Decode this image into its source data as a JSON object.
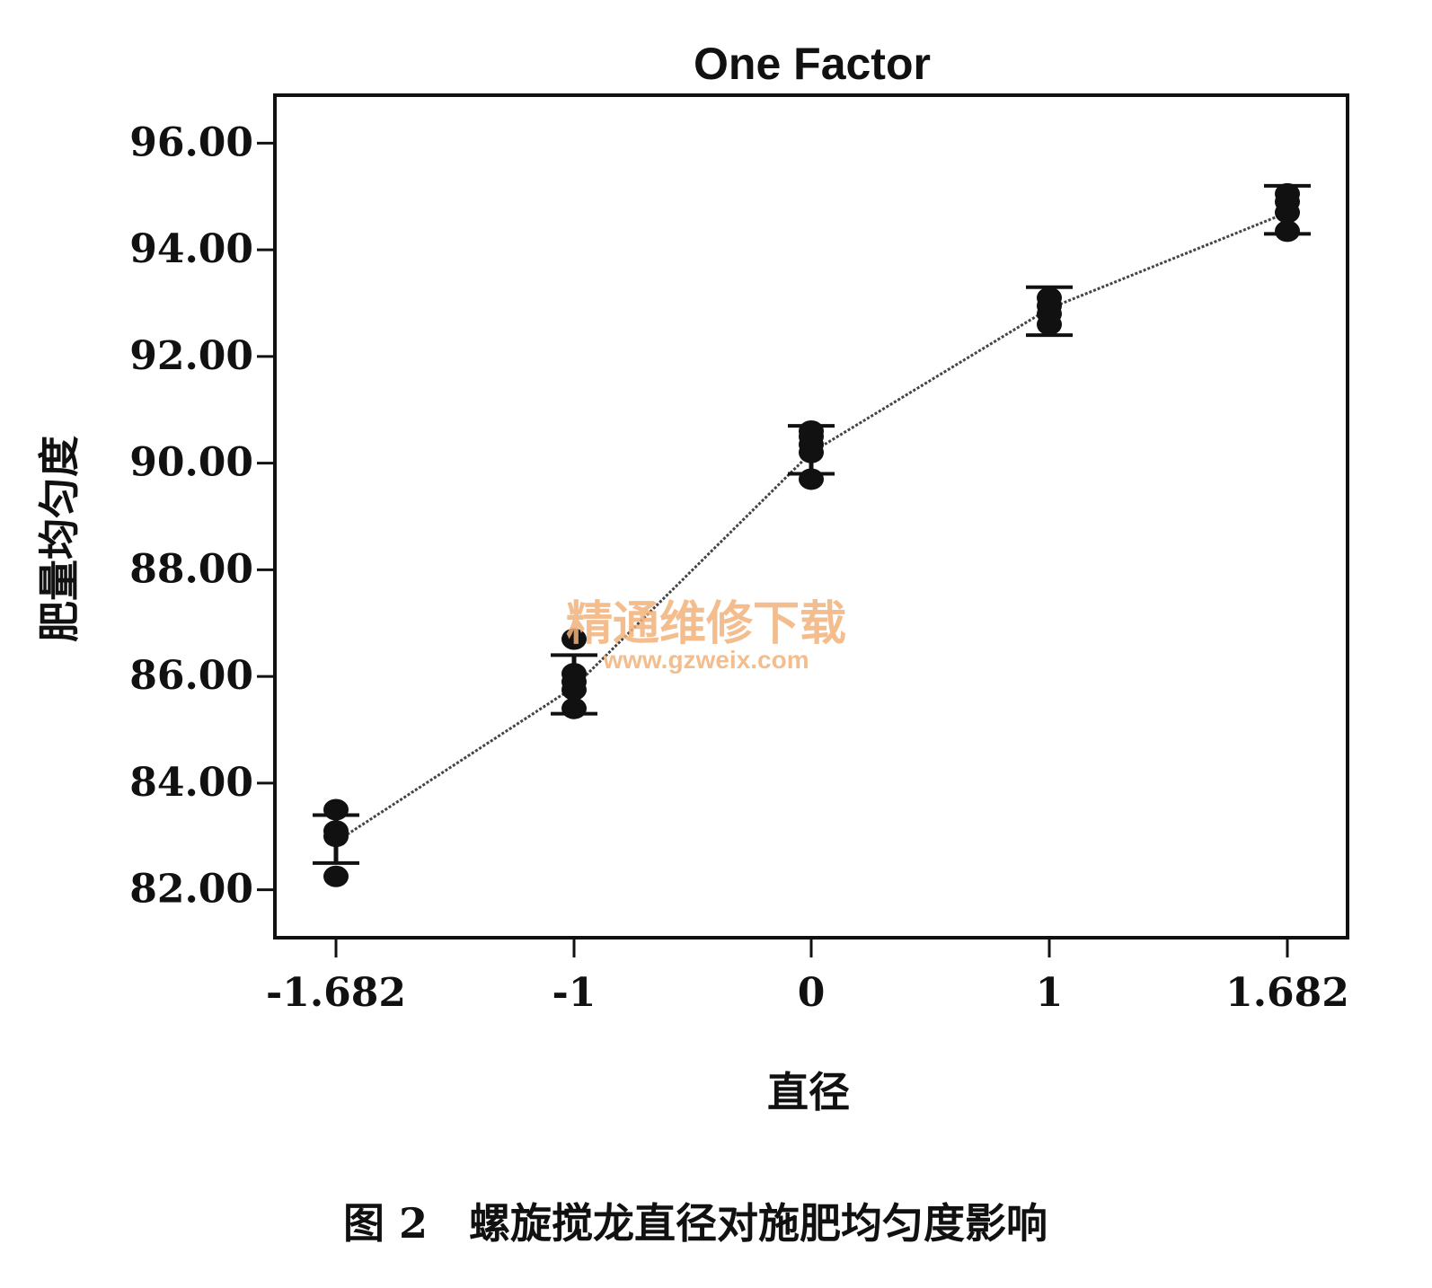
{
  "chart_data": {
    "type": "scatter",
    "title": "One Factor",
    "xlabel": "直径",
    "ylabel": "肥量均匀度",
    "caption": "图 2　螺旋搅龙直径对施肥均匀度影响",
    "watermark": {
      "line1": "精通维修下载",
      "line2": "www.gzweix.com",
      "color": "#f2b27a"
    },
    "x_ticks": [
      "-1.682",
      "-1",
      "0",
      "1",
      "1.682"
    ],
    "y_ticks": [
      "82.00",
      "84.00",
      "86.00",
      "88.00",
      "90.00",
      "92.00",
      "94.00",
      "96.00"
    ],
    "y_tick_values": [
      82,
      84,
      86,
      88,
      90,
      92,
      94,
      96
    ],
    "ylim": [
      81.1,
      96.9
    ],
    "grid": false,
    "mean_line": {
      "x": [
        -1.682,
        -1,
        0,
        1,
        1.682
      ],
      "y": [
        82.9,
        85.8,
        90.2,
        92.9,
        94.7
      ]
    },
    "error_bars": [
      {
        "x": -1.682,
        "low": 82.5,
        "high": 83.4
      },
      {
        "x": -1,
        "low": 85.3,
        "high": 86.4
      },
      {
        "x": 0,
        "low": 89.8,
        "high": 90.7
      },
      {
        "x": 1,
        "low": 92.4,
        "high": 93.3
      },
      {
        "x": 1.682,
        "low": 94.3,
        "high": 95.2
      }
    ],
    "points": [
      {
        "x": -1.682,
        "y": 82.25
      },
      {
        "x": -1.682,
        "y": 83.0
      },
      {
        "x": -1.682,
        "y": 83.1
      },
      {
        "x": -1.682,
        "y": 83.5
      },
      {
        "x": -1,
        "y": 85.4
      },
      {
        "x": -1,
        "y": 85.75
      },
      {
        "x": -1,
        "y": 85.9
      },
      {
        "x": -1,
        "y": 86.05
      },
      {
        "x": -1,
        "y": 86.7
      },
      {
        "x": 0,
        "y": 89.7
      },
      {
        "x": 0,
        "y": 90.2
      },
      {
        "x": 0,
        "y": 90.35
      },
      {
        "x": 0,
        "y": 90.5
      },
      {
        "x": 0,
        "y": 90.6
      },
      {
        "x": 1,
        "y": 92.6
      },
      {
        "x": 1,
        "y": 92.8
      },
      {
        "x": 1,
        "y": 92.95
      },
      {
        "x": 1,
        "y": 93.1
      },
      {
        "x": 1.682,
        "y": 94.35
      },
      {
        "x": 1.682,
        "y": 94.7
      },
      {
        "x": 1.682,
        "y": 94.9
      },
      {
        "x": 1.682,
        "y": 95.05
      }
    ]
  }
}
